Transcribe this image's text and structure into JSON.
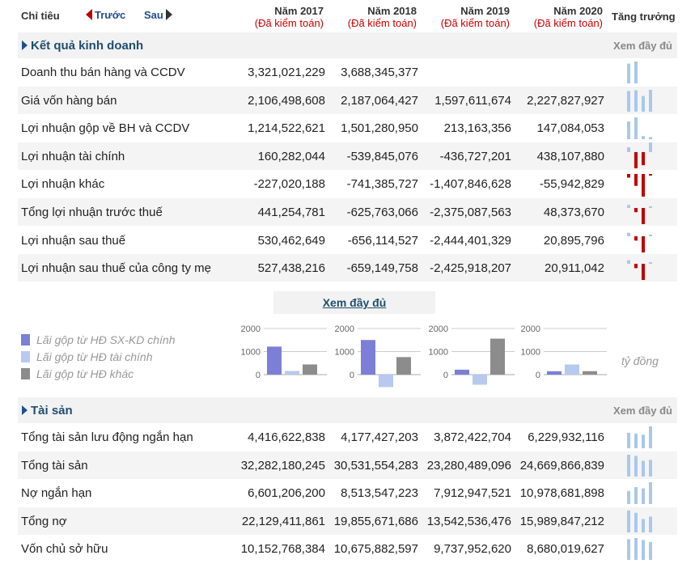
{
  "header": {
    "label": "Chỉ tiêu",
    "prev": "Trước",
    "next": "Sau",
    "growth": "Tăng trưởng",
    "years": [
      {
        "year": "Năm 2017",
        "audit": "(Đã kiểm toán)"
      },
      {
        "year": "Năm 2018",
        "audit": "(Đã kiểm toán)"
      },
      {
        "year": "Năm 2019",
        "audit": "(Đã kiểm toán)"
      },
      {
        "year": "Năm 2020",
        "audit": "(Đã kiểm toán)"
      }
    ]
  },
  "colors": {
    "bar_blue": "#a9c8ea",
    "bar_red": "#c00000",
    "series_1": "#7b7fd6",
    "series_2": "#b8c9f0",
    "series_3": "#8c8c8c"
  },
  "kqkd": {
    "title": "Kết quả kinh doanh",
    "full_link": "Xem đầy đủ",
    "rows": [
      {
        "label": "Doanh thu bán hàng và CCDV",
        "values": [
          "3,321,021,229",
          "3,688,345,377",
          "",
          ""
        ],
        "growth": [
          3321021229,
          3688345377,
          0,
          0
        ]
      },
      {
        "label": "Giá vốn hàng bán",
        "values": [
          "2,106,498,608",
          "2,187,064,427",
          "1,597,611,674",
          "2,227,827,927"
        ],
        "growth": [
          2106498608,
          2187064427,
          1597611674,
          2227827927
        ]
      },
      {
        "label": "Lợi nhuận gộp về BH và CCDV",
        "values": [
          "1,214,522,621",
          "1,501,280,950",
          "213,163,356",
          "147,084,053"
        ],
        "growth": [
          1214522621,
          1501280950,
          213163356,
          147084053
        ]
      },
      {
        "label": "Lợi nhuận tài chính",
        "values": [
          "160,282,044",
          "-539,845,076",
          "-436,727,201",
          "438,107,880"
        ],
        "growth": [
          160282044,
          -539845076,
          -436727201,
          438107880
        ]
      },
      {
        "label": "Lợi nhuận khác",
        "values": [
          "-227,020,188",
          "-741,385,727",
          "-1,407,846,628",
          "-55,942,829"
        ],
        "growth": [
          -227020188,
          -741385727,
          -1407846628,
          -55942829
        ]
      },
      {
        "label": "Tổng lợi nhuận trước thuế",
        "values": [
          "441,254,781",
          "-625,763,066",
          "-2,375,087,563",
          "48,373,670"
        ],
        "growth": [
          441254781,
          -625763066,
          -2375087563,
          48373670
        ]
      },
      {
        "label": "Lợi nhuận sau thuế",
        "values": [
          "530,462,649",
          "-656,114,527",
          "-2,444,401,329",
          "20,895,796"
        ],
        "growth": [
          530462649,
          -656114527,
          -2444401329,
          20895796
        ]
      },
      {
        "label": "Lợi nhuận sau thuế của công ty mẹ",
        "values": [
          "527,438,216",
          "-659,149,758",
          "-2,425,918,207",
          "20,911,042"
        ],
        "growth": [
          527438216,
          -659149758,
          -2425918207,
          20911042
        ]
      }
    ]
  },
  "middle": {
    "full_link": "Xem đầy đủ",
    "legend": [
      "Lãi gộp từ HĐ SX-KD chính",
      "Lãi gộp từ HĐ tài chính",
      "Lãi gộp từ HĐ khác"
    ],
    "unit": "tỷ đồng"
  },
  "chart_data": {
    "type": "bar",
    "categories": [
      "2017",
      "2018",
      "2019",
      "2020"
    ],
    "yticks": [
      "2000",
      "1000",
      "0"
    ],
    "ylim": [
      -600,
      2000
    ],
    "series": [
      {
        "name": "Lãi gộp từ HĐ SX-KD chính",
        "values": [
          1215,
          1501,
          213,
          147
        ]
      },
      {
        "name": "Lãi gộp từ HĐ tài chính",
        "values": [
          160,
          -540,
          -437,
          438
        ]
      },
      {
        "name": "Lãi gộp từ HĐ khác",
        "values": [
          441,
          760,
          1560,
          150
        ]
      }
    ]
  },
  "taisan": {
    "title": "Tài sản",
    "full_link": "Xem đầy đủ",
    "rows": [
      {
        "label": "Tổng tài sản lưu động ngắn hạn",
        "values": [
          "4,416,622,838",
          "4,177,427,203",
          "3,872,422,704",
          "6,229,932,116"
        ],
        "growth": [
          4416622838,
          4177427203,
          3872422704,
          6229932116
        ]
      },
      {
        "label": "Tổng tài sản",
        "values": [
          "32,282,180,245",
          "30,531,554,283",
          "23,280,489,096",
          "24,669,866,839"
        ],
        "growth": [
          32282180245,
          30531554283,
          23280489096,
          24669866839
        ]
      },
      {
        "label": "Nợ ngắn hạn",
        "values": [
          "6,601,206,200",
          "8,513,547,223",
          "7,912,947,521",
          "10,978,681,898"
        ],
        "growth": [
          6601206200,
          8513547223,
          7912947521,
          10978681898
        ]
      },
      {
        "label": "Tổng nợ",
        "values": [
          "22,129,411,861",
          "19,855,671,686",
          "13,542,536,476",
          "15,989,847,212"
        ],
        "growth": [
          22129411861,
          19855671686,
          13542536476,
          15989847212
        ]
      },
      {
        "label": "Vốn chủ sở hữu",
        "values": [
          "10,152,768,384",
          "10,675,882,597",
          "9,737,952,620",
          "8,680,019,627"
        ],
        "growth": [
          10152768384,
          10675882597,
          9737952620,
          8680019627
        ]
      }
    ]
  }
}
